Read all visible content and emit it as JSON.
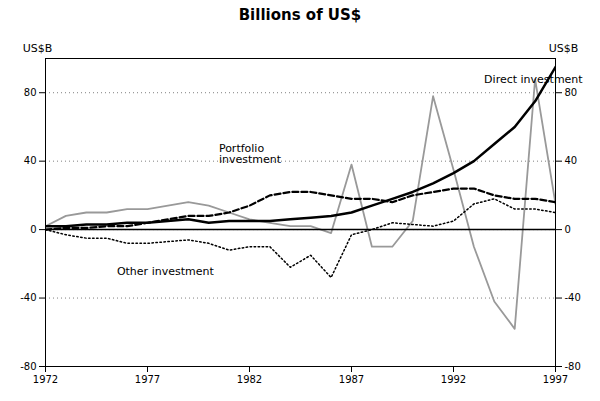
{
  "chart_data": {
    "type": "line",
    "title": "Billions of US$",
    "ylabel": "US$B",
    "y2label": "US$B",
    "x": [
      1972,
      1973,
      1974,
      1975,
      1976,
      1977,
      1978,
      1979,
      1980,
      1981,
      1982,
      1983,
      1984,
      1985,
      1986,
      1987,
      1988,
      1989,
      1990,
      1991,
      1992,
      1993,
      1994,
      1995,
      1996,
      1997
    ],
    "xlim": [
      1972,
      1997
    ],
    "xticks": [
      1972,
      1977,
      1982,
      1987,
      1992,
      1997
    ],
    "ylim": [
      -80,
      100
    ],
    "yticks": [
      -80,
      -40,
      0,
      40,
      80
    ],
    "y2lim": [
      -80,
      100
    ],
    "y2ticks": [
      -80,
      -40,
      0,
      40,
      80
    ],
    "grid": true,
    "series": [
      {
        "color": "#999999",
        "line_style": "solid",
        "values": [
          2,
          8,
          10,
          10,
          12,
          12,
          14,
          16,
          14,
          10,
          6,
          4,
          2,
          2,
          -2,
          38,
          -10,
          -10,
          5,
          78,
          35,
          -10,
          -42,
          -58,
          88,
          15
        ]
      },
      {
        "color": "black",
        "line_style": "solid",
        "values": [
          2,
          2,
          3,
          3,
          4,
          4,
          5,
          6,
          4,
          5,
          5,
          5,
          6,
          7,
          8,
          10,
          14,
          18,
          22,
          27,
          33,
          40,
          50,
          60,
          75,
          95
        ]
      },
      {
        "color": "black",
        "line_style": "dashed",
        "values": [
          0,
          1,
          1,
          2,
          2,
          4,
          6,
          8,
          8,
          10,
          14,
          20,
          22,
          22,
          20,
          18,
          18,
          16,
          20,
          22,
          24,
          24,
          20,
          18,
          18,
          16
        ]
      },
      {
        "color": "black",
        "line_style": "dotted",
        "values": [
          0,
          -3,
          -5,
          -5,
          -8,
          -8,
          -7,
          -6,
          -8,
          -12,
          -10,
          -10,
          -22,
          -15,
          -28,
          -3,
          0,
          4,
          3,
          2,
          5,
          15,
          18,
          12,
          12,
          10
        ]
      }
    ],
    "annotations": [
      {
        "text": "Direct investment",
        "x": 1993.5,
        "y": 90
      },
      {
        "text": "Portfolio\ninvestment",
        "x": 1980.5,
        "y": 50
      },
      {
        "text": "Other investment",
        "x": 1975.5,
        "y": -22
      }
    ]
  }
}
